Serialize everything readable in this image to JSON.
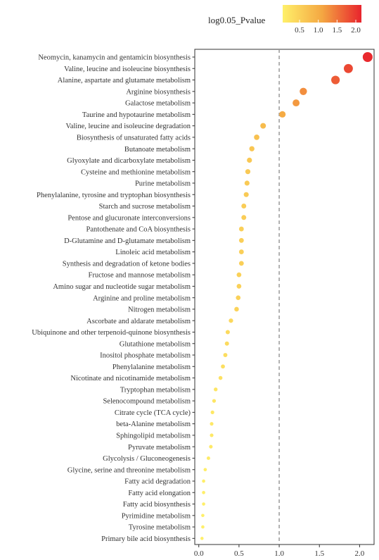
{
  "chart_data": {
    "type": "scatter",
    "categories": [
      "Neomycin, kanamycin and gentamicin biosynthesis",
      "Valine, leucine and isoleucine biosynthesis",
      "Alanine, aspartate and glutamate metabolism",
      "Arginine biosynthesis",
      "Galactose metabolism",
      "Taurine and hypotaurine metabolism",
      "Valine, leucine and isoleucine degradation",
      "Biosynthesis of unsaturated fatty acids",
      "Butanoate metabolism",
      "Glyoxylate and dicarboxylate metabolism",
      "Cysteine and methionine metabolism",
      "Purine metabolism",
      "Phenylalanine, tyrosine and tryptophan biosynthesis",
      "Starch and sucrose metabolism",
      "Pentose and glucuronate interconversions",
      "Pantothenate and CoA biosynthesis",
      "D-Glutamine and D-glutamate metabolism",
      "Linoleic acid metabolism",
      "Synthesis and degradation of ketone bodies",
      "Fructose and mannose metabolism",
      "Amino sugar and nucleotide sugar metabolism",
      "Arginine and proline metabolism",
      "Nitrogen metabolism",
      "Ascorbate and aldarate metabolism",
      "Ubiquinone and other terpenoid-quinone biosynthesis",
      "Glutathione metabolism",
      "Inositol phosphate metabolism",
      "Phenylalanine metabolism",
      "Nicotinate and nicotinamide metabolism",
      "Tryptophan metabolism",
      "Selenocompound metabolism",
      "Citrate cycle (TCA cycle)",
      "beta-Alanine metabolism",
      "Sphingolipid metabolism",
      "Pyruvate metabolism",
      "Glycolysis / Gluconeogenesis",
      "Glycine, serine and threonine metabolism",
      "Fatty acid degradation",
      "Fatty acid elongation",
      "Fatty acid biosynthesis",
      "Pyrimidine metabolism",
      "Tyrosine metabolism",
      "Primary bile acid biosynthesis"
    ],
    "values": [
      2.1,
      1.86,
      1.7,
      1.3,
      1.21,
      1.04,
      0.8,
      0.72,
      0.66,
      0.63,
      0.61,
      0.6,
      0.59,
      0.56,
      0.56,
      0.53,
      0.53,
      0.53,
      0.53,
      0.5,
      0.5,
      0.49,
      0.47,
      0.4,
      0.36,
      0.35,
      0.33,
      0.3,
      0.27,
      0.21,
      0.19,
      0.17,
      0.16,
      0.16,
      0.15,
      0.12,
      0.08,
      0.06,
      0.06,
      0.06,
      0.05,
      0.05,
      0.04
    ],
    "xlim": [
      -0.05,
      2.18
    ],
    "xticks": [
      0.0,
      0.5,
      1.0,
      1.5,
      2.0
    ],
    "xtick_labels": [
      "0.0",
      "0.5",
      "1.0",
      "1.5",
      "2.0"
    ],
    "reference_line": 1.0,
    "color_scale": {
      "title": "log0.05_Pvalue",
      "range": [
        0.05,
        2.15
      ],
      "ticks": [
        0.5,
        1.0,
        1.5,
        2.0
      ],
      "tick_labels": [
        "0.5",
        "1.0",
        "1.5",
        "2.0"
      ],
      "low_color": "#FFF06A",
      "mid_color": "#F4A742",
      "high_color": "#E8242D"
    },
    "title": "",
    "xlabel": "",
    "ylabel": "",
    "grid": false,
    "legend_position": "top-right"
  }
}
